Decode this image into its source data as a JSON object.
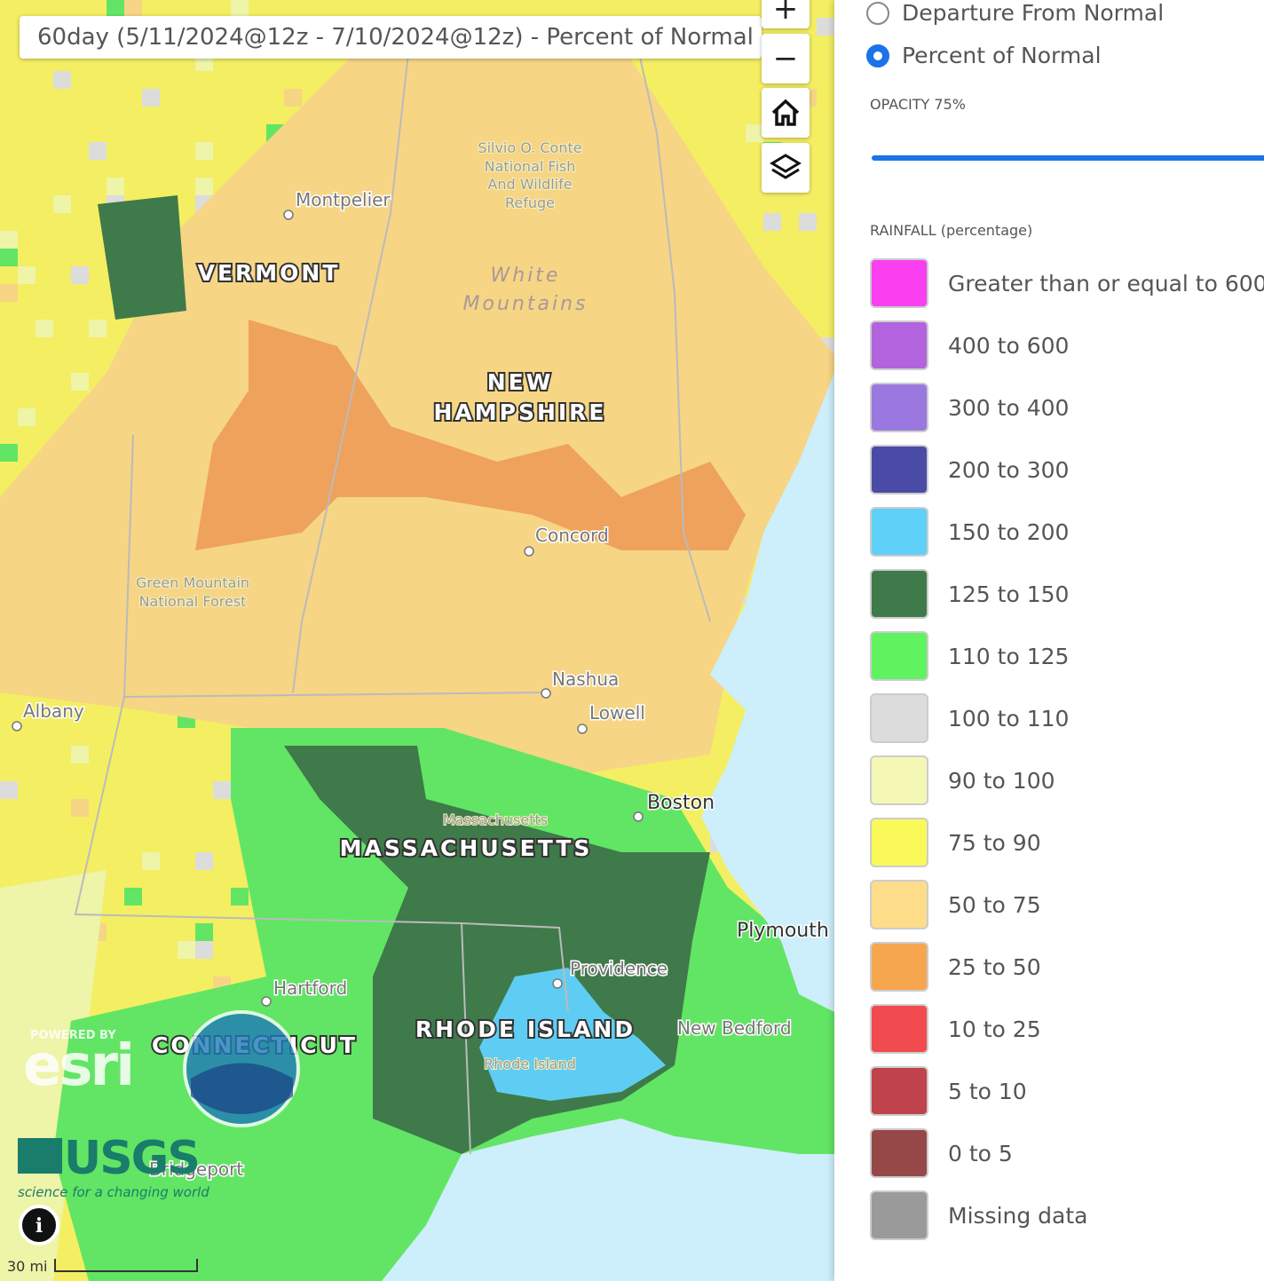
{
  "map": {
    "title": "60day (5/11/2024@12z - 7/10/2024@12z) - Percent of Normal",
    "controls": {
      "zoom_in": "+",
      "zoom_out": "−"
    },
    "labels": [
      "Montpelier",
      "VERMONT",
      "NEW",
      "HAMPSHIRE",
      "White",
      "Mountains",
      "Silvio O. Conte",
      "National Fish",
      "And Wildlife",
      "Refuge",
      "Green Mountain",
      "National Forest",
      "Concord",
      "Albany",
      "Nashua",
      "Lowell",
      "Boston",
      "Massachusetts",
      "MASSACHUSETTS",
      "Plymouth",
      "Providence",
      "Hartford",
      "CONNECTICUT",
      "RHODE ISLAND",
      "Rhode Island",
      "New Bedford",
      "Bridgeport"
    ],
    "attribution": {
      "powered_by": "POWERED BY",
      "esri": "esri",
      "usgs": "USGS",
      "usgs_tagline": "science for a changing world"
    },
    "scale": "30 mi"
  },
  "panel": {
    "options": [
      {
        "label": "Departure From Normal",
        "selected": false
      },
      {
        "label": "Percent of Normal",
        "selected": true
      }
    ],
    "opacity_label": "OPACITY 75%",
    "legend_title": "RAINFALL (percentage)",
    "legend": [
      {
        "label": "Greater than or equal to 600",
        "color": "#f93ff0"
      },
      {
        "label": "400 to 600",
        "color": "#b463df"
      },
      {
        "label": "300 to 400",
        "color": "#9a78e0"
      },
      {
        "label": "200 to 300",
        "color": "#4a4ba6"
      },
      {
        "label": "150 to 200",
        "color": "#5fd0f7"
      },
      {
        "label": "125 to 150",
        "color": "#3f7a4a"
      },
      {
        "label": "110 to 125",
        "color": "#5ff35f"
      },
      {
        "label": "100 to 110",
        "color": "#dcdcdc"
      },
      {
        "label": "90 to 100",
        "color": "#f4f8b4"
      },
      {
        "label": "75 to 90",
        "color": "#f9f95a"
      },
      {
        "label": "50 to 75",
        "color": "#fddd8a"
      },
      {
        "label": "25 to 50",
        "color": "#f7a650"
      },
      {
        "label": "10 to 25",
        "color": "#f14b50"
      },
      {
        "label": "5 to 10",
        "color": "#c0424a"
      },
      {
        "label": "0 to 5",
        "color": "#964848"
      },
      {
        "label": "Missing data",
        "color": "#9a9a9a"
      }
    ]
  }
}
